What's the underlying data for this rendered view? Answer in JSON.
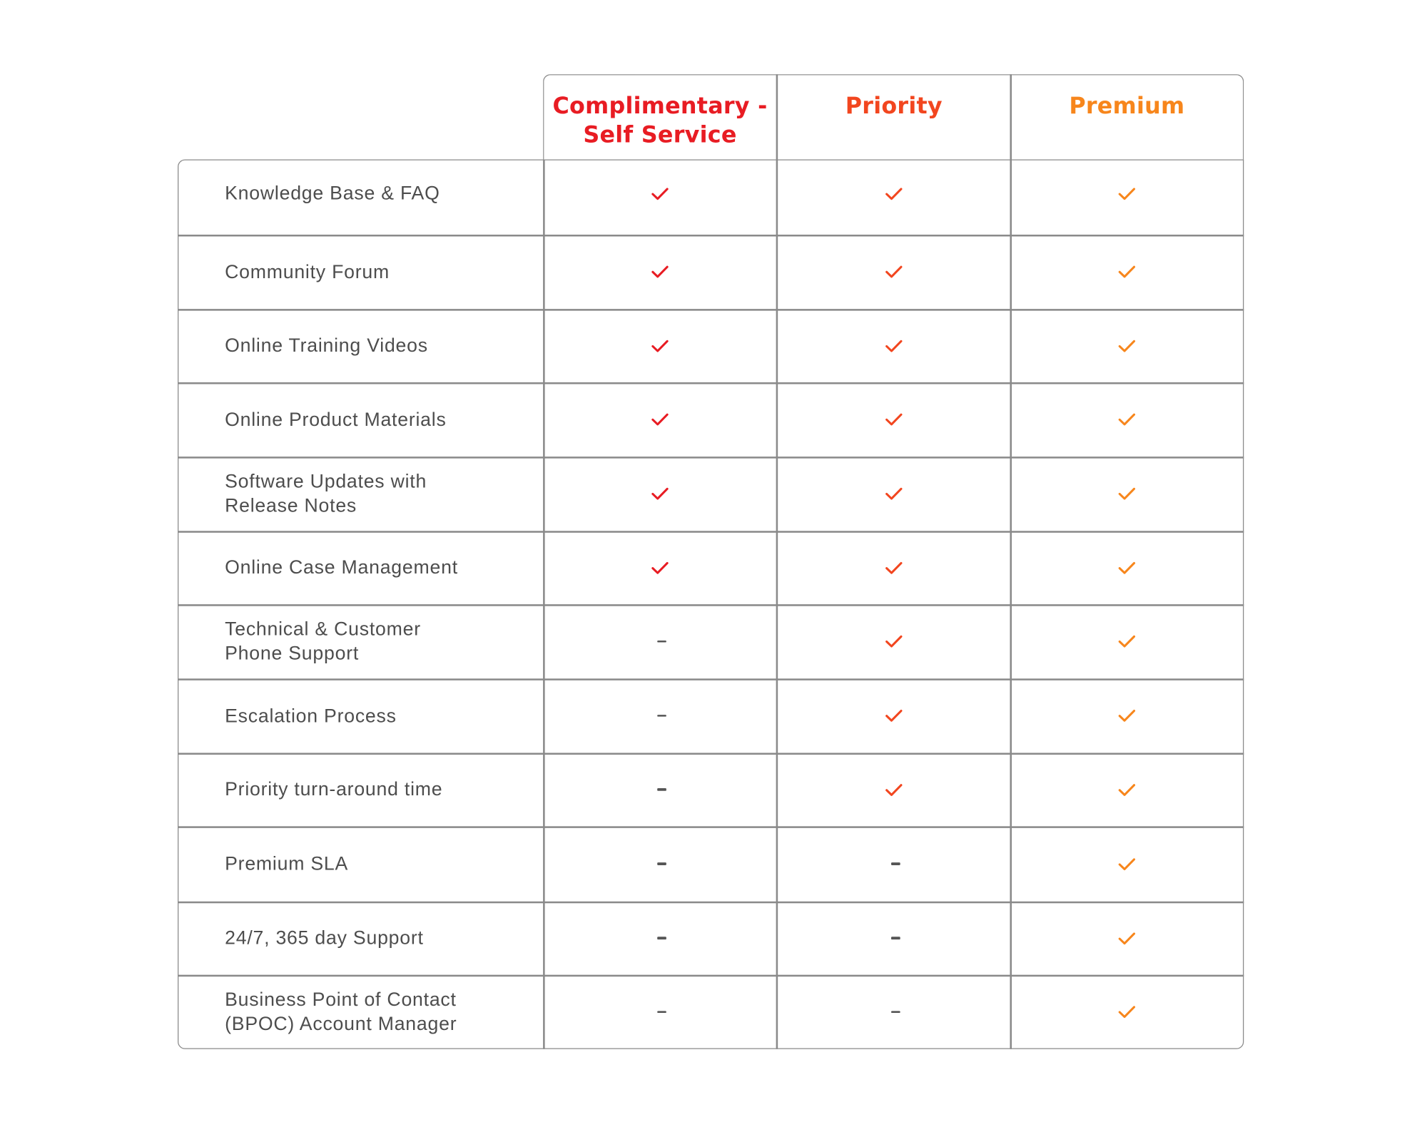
{
  "columns": [
    {
      "label_line1": "Complimentary -",
      "label_line2": "Self Service",
      "color": "#e81c23"
    },
    {
      "label_line1": "Priority",
      "label_line2": "",
      "color": "#f2461f"
    },
    {
      "label_line1": "Premium",
      "label_line2": "",
      "color": "#f7861c"
    }
  ],
  "rows": [
    {
      "feature": [
        "Knowledge Base & FAQ"
      ],
      "values": [
        "check",
        "check",
        "check"
      ]
    },
    {
      "feature": [
        "Community Forum"
      ],
      "values": [
        "check",
        "check",
        "check"
      ]
    },
    {
      "feature": [
        "Online Training Videos"
      ],
      "values": [
        "check",
        "check",
        "check"
      ]
    },
    {
      "feature": [
        "Online Product Materials"
      ],
      "values": [
        "check",
        "check",
        "check"
      ]
    },
    {
      "feature": [
        "Software Updates with",
        "Release Notes"
      ],
      "values": [
        "check",
        "check",
        "check"
      ]
    },
    {
      "feature": [
        "Online Case Management"
      ],
      "values": [
        "check",
        "check",
        "check"
      ]
    },
    {
      "feature": [
        "Technical & Customer",
        "Phone Support"
      ],
      "values": [
        "dash",
        "check",
        "check"
      ]
    },
    {
      "feature": [
        "Escalation Process"
      ],
      "values": [
        "dash",
        "check",
        "check"
      ]
    },
    {
      "feature": [
        "Priority turn-around time"
      ],
      "values": [
        "dash",
        "check",
        "check"
      ]
    },
    {
      "feature": [
        "Premium SLA"
      ],
      "values": [
        "dash",
        "dash",
        "check"
      ]
    },
    {
      "feature": [
        "24/7, 365 day Support"
      ],
      "values": [
        "dash",
        "dash",
        "check"
      ]
    },
    {
      "feature": [
        "Business Point of Contact",
        "(BPOC) Account Manager"
      ],
      "values": [
        "dash",
        "dash",
        "check"
      ]
    }
  ],
  "icons": {
    "check": "checkmark-icon",
    "dash": "dash-icon"
  },
  "colors": {
    "border": "#8a8a8a",
    "text": "#4d4d4d",
    "dash": "#555555"
  }
}
